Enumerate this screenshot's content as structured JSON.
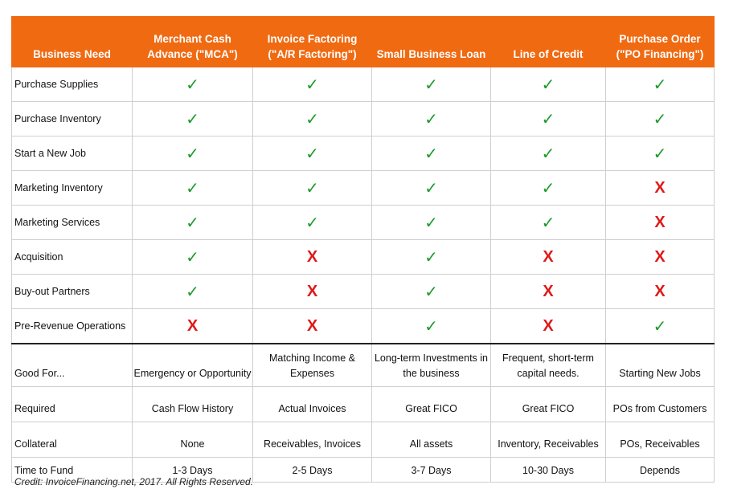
{
  "table": {
    "header": [
      [
        "Business Need"
      ],
      [
        "Merchant Cash",
        "Advance (\"MCA\")"
      ],
      [
        "Invoice Factoring",
        "(\"A/R Factoring\")"
      ],
      [
        "Small Business Loan"
      ],
      [
        "Line of Credit"
      ],
      [
        "Purchase Order",
        "(\"PO Financing\")"
      ]
    ],
    "rows": [
      [
        "Purchase Supplies",
        "✓",
        "✓",
        "✓",
        "✓",
        "✓"
      ],
      [
        "Purchase Inventory",
        "✓",
        "✓",
        "✓",
        "✓",
        "✓"
      ],
      [
        "Start a New Job",
        "✓",
        "✓",
        "✓",
        "✓",
        "✓"
      ],
      [
        "Marketing Inventory",
        "✓",
        "✓",
        "✓",
        "✓",
        "X"
      ],
      [
        "Marketing Services",
        "✓",
        "✓",
        "✓",
        "✓",
        "X"
      ],
      [
        "Acquisition",
        "✓",
        "X",
        "✓",
        "X",
        "X"
      ],
      [
        "Buy-out Partners",
        "✓",
        "X",
        "✓",
        "X",
        "X"
      ],
      [
        "Pre-Revenue Operations",
        "X",
        "X",
        "✓",
        "X",
        "✓"
      ],
      [
        "Good For...",
        "Emergency or Opportunity",
        "Matching Income & Expenses",
        "Long-term Investments in the business",
        "Frequent, short-term capital needs.",
        "Starting New Jobs"
      ],
      [
        "Required",
        "Cash Flow History",
        "Actual Invoices",
        "Great FICO",
        "Great FICO",
        "POs from Customers"
      ],
      [
        "Collateral",
        "None",
        "Receivables, Invoices",
        "All assets",
        "Inventory, Receivables",
        "POs, Receivables"
      ],
      [
        "Time to Fund",
        "1-3 Days",
        "2-5 Days",
        "3-7 Days",
        "10-30 Days",
        "Depends"
      ]
    ]
  },
  "credit": "Credit: InvoiceFinancing.net, 2017. All Rights Reserved."
}
